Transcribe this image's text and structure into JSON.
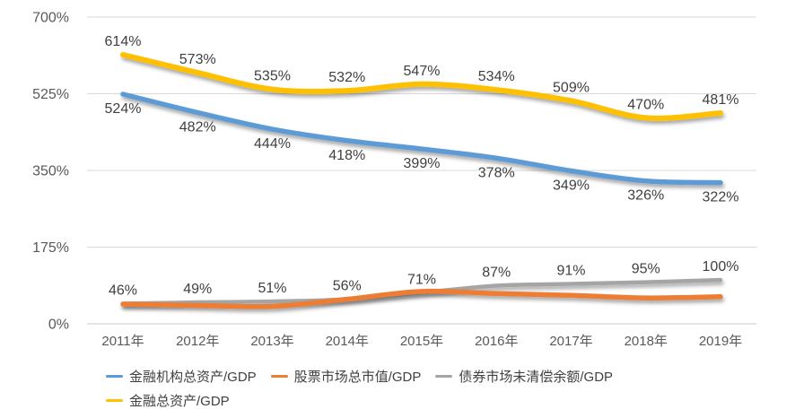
{
  "chart_data": {
    "type": "line",
    "title": "",
    "smoothed": true,
    "grid": true,
    "legend_position": "bottom",
    "label_suffix": "%",
    "categories": [
      "2011年",
      "2012年",
      "2013年",
      "2014年",
      "2015年",
      "2016年",
      "2017年",
      "2018年",
      "2019年"
    ],
    "series": [
      {
        "name": "金融机构总资产/GDP",
        "color": "#5B9BD5",
        "values": [
          524,
          482,
          444,
          418,
          399,
          378,
          349,
          326,
          322
        ],
        "data_labels": "below",
        "stroke_width": 5.5
      },
      {
        "name": "股票市场总市值/GDP",
        "color": "#ED7D31",
        "values": [
          45,
          42,
          40,
          56,
          74,
          69,
          65,
          59,
          62
        ],
        "data_labels": "none",
        "estimated": true,
        "stroke_width": 5.5
      },
      {
        "name": "债券市场未清偿余额/GDP",
        "color": "#A5A5A5",
        "values": [
          46,
          49,
          51,
          56,
          71,
          87,
          91,
          95,
          100
        ],
        "data_labels": "above",
        "stroke_width": 4.5
      },
      {
        "name": "金融总资产/GDP",
        "color": "#FFC000",
        "values": [
          614,
          573,
          535,
          532,
          547,
          534,
          509,
          470,
          481
        ],
        "data_labels": "above",
        "stroke_width": 6
      }
    ],
    "y_axis": {
      "min": 0,
      "max": 700,
      "step": 175,
      "tick_labels": [
        "0%",
        "175%",
        "350%",
        "525%",
        "700%"
      ]
    },
    "legend_rows": [
      [
        0,
        1,
        2
      ],
      [
        3
      ]
    ],
    "colors": {
      "grid_line": "#D9D9D9",
      "zero_line": "#C9C9C9",
      "axis_text": "#595959",
      "data_label_text": "#3F3F3F",
      "legend_text": "#404040",
      "background": "#FFFFFF"
    }
  }
}
